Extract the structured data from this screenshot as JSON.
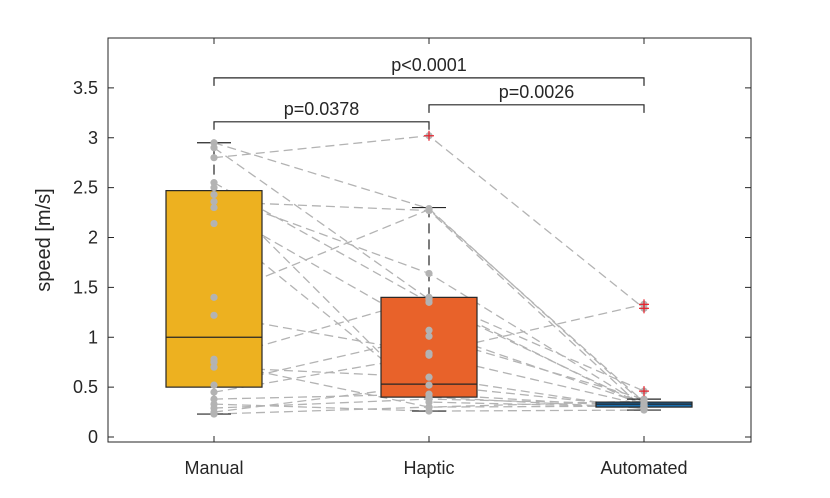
{
  "chart_data": {
    "type": "box",
    "ylabel": "speed [m/s]",
    "xlabel": "",
    "ylim": [
      -0.05,
      4.0
    ],
    "yticks": [
      "0",
      "0.5",
      "1",
      "1.5",
      "2",
      "2.5",
      "3",
      "3.5"
    ],
    "ytick_values": [
      0,
      0.5,
      1,
      1.5,
      2,
      2.5,
      3,
      3.5
    ],
    "grid": false,
    "categories": [
      "Manual",
      "Haptic",
      "Automated"
    ],
    "colors": [
      "#EDB120",
      "#E8622A",
      "#1B6FB0"
    ],
    "boxes": [
      {
        "category": "Manual",
        "whisker_low": 0.23,
        "q1": 0.5,
        "median": 1.0,
        "q3": 2.47,
        "whisker_high": 2.95,
        "outliers": []
      },
      {
        "category": "Haptic",
        "whisker_low": 0.26,
        "q1": 0.4,
        "median": 0.53,
        "q3": 1.4,
        "whisker_high": 2.3,
        "outliers": [
          3.02
        ]
      },
      {
        "category": "Automated",
        "whisker_low": 0.27,
        "q1": 0.3,
        "median": 0.33,
        "q3": 0.35,
        "whisker_high": 0.38,
        "outliers": [
          1.33,
          1.29,
          0.46
        ]
      }
    ],
    "paired_points": [
      [
        2.95,
        2.29,
        0.33
      ],
      [
        2.9,
        1.38,
        0.3
      ],
      [
        2.8,
        3.02,
        1.29
      ],
      [
        2.55,
        1.35,
        0.32
      ],
      [
        2.5,
        0.35,
        0.3
      ],
      [
        2.43,
        1.64,
        0.31
      ],
      [
        2.36,
        2.27,
        0.28
      ],
      [
        2.3,
        1.07,
        0.33
      ],
      [
        2.14,
        0.4,
        0.29
      ],
      [
        1.4,
        2.28,
        0.35
      ],
      [
        1.22,
        0.84,
        1.33
      ],
      [
        0.78,
        1.4,
        0.46
      ],
      [
        0.75,
        0.3,
        0.31
      ],
      [
        0.7,
        0.6,
        0.28
      ],
      [
        0.52,
        1.01,
        0.38
      ],
      [
        0.45,
        0.82,
        0.32
      ],
      [
        0.38,
        0.43,
        0.3
      ],
      [
        0.33,
        0.26,
        0.27
      ],
      [
        0.29,
        0.38,
        0.33
      ],
      [
        0.25,
        0.52,
        0.3
      ],
      [
        0.23,
        0.3,
        0.36
      ]
    ],
    "significance": [
      {
        "from": "Manual",
        "to": "Haptic",
        "label": "p=0.0378",
        "level": 3.16
      },
      {
        "from": "Haptic",
        "to": "Automated",
        "label": "p=0.0026",
        "level": 3.33
      },
      {
        "from": "Manual",
        "to": "Automated",
        "label": "p<0.0001",
        "level": 3.6
      }
    ]
  }
}
